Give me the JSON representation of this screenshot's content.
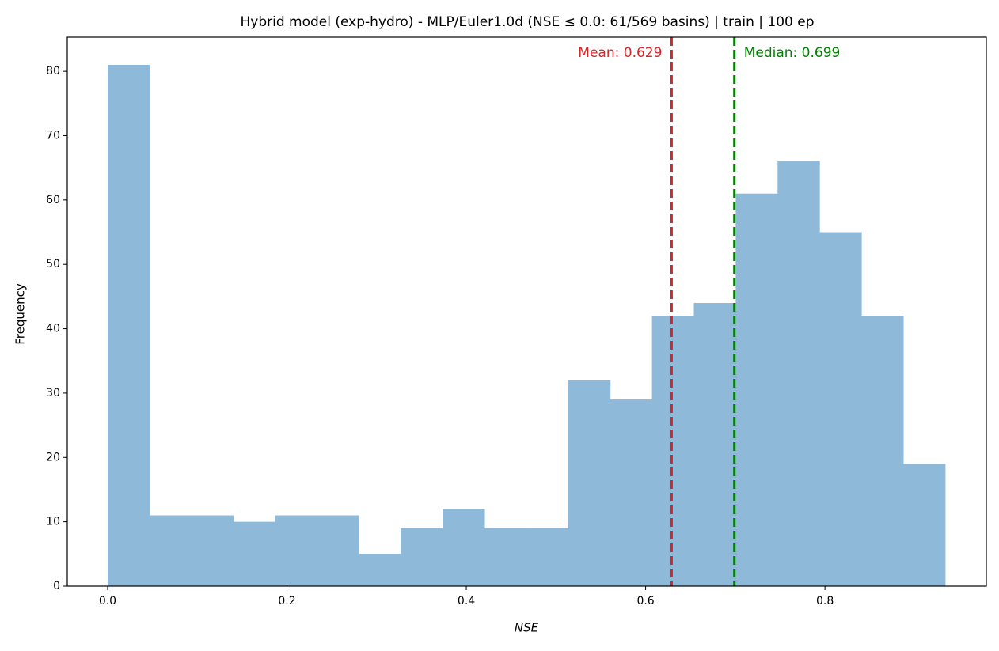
{
  "chart_data": {
    "type": "histogram",
    "title": "Hybrid model (exp-hydro) - MLP/Euler1.0d (NSE ≤ 0.0: 61/569 basins) | train | 100 ep",
    "xlabel": "NSE",
    "ylabel": "Frequency",
    "bins": [
      0,
      0.0467,
      0.0934,
      0.1401,
      0.1868,
      0.2335,
      0.2802,
      0.3269,
      0.3736,
      0.4203,
      0.467,
      0.5137,
      0.5604,
      0.6071,
      0.6538,
      0.7005,
      0.7472,
      0.7939,
      0.8406,
      0.8873,
      0.934
    ],
    "counts": [
      81,
      11,
      11,
      10,
      11,
      11,
      5,
      9,
      12,
      9,
      9,
      32,
      29,
      42,
      44,
      61,
      66,
      55,
      42,
      19
    ],
    "color": "#8fb9d9",
    "lines": [
      {
        "value": 0.629,
        "label": "Mean: 0.629",
        "color": "#d62728"
      },
      {
        "value": 0.699,
        "label": "Median: 0.699",
        "color": "#008000"
      }
    ],
    "xlim": [
      -0.045,
      0.98
    ],
    "ylim": [
      0,
      85.3
    ],
    "xticks": [
      {
        "value": 0,
        "label": "0.0"
      },
      {
        "value": 0.2,
        "label": "0.2"
      },
      {
        "value": 0.4,
        "label": "0.4"
      },
      {
        "value": 0.6,
        "label": "0.6"
      },
      {
        "value": 0.8,
        "label": "0.8"
      }
    ],
    "yticks": [
      0,
      10,
      20,
      30,
      40,
      50,
      60,
      70,
      80
    ]
  }
}
